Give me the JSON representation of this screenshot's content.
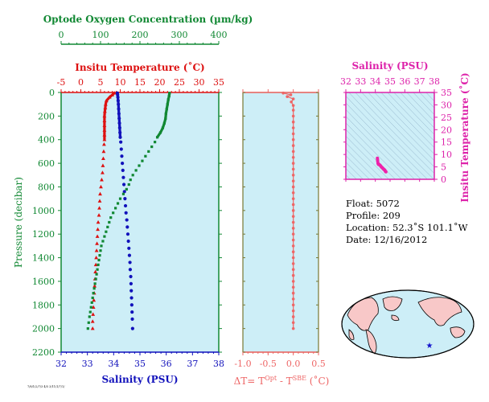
{
  "chart_data": [
    {
      "type": "scatter",
      "panel": "profiles",
      "ylabel": "Pressure (decibar)",
      "ylim": [
        0,
        2200
      ],
      "y_reversed": true,
      "yticks": [
        0,
        200,
        400,
        600,
        800,
        1000,
        1200,
        1400,
        1600,
        1800,
        2000,
        2200
      ],
      "axes": {
        "oxygen": {
          "label": "Optode Oxygen Concentration (µm/kg)",
          "lim": [
            0,
            400
          ],
          "ticks": [
            0,
            100,
            200,
            300,
            400
          ],
          "color": "#118833"
        },
        "temperature": {
          "label": "Insitu Temperature (˚C)",
          "lim": [
            -5,
            35
          ],
          "ticks": [
            -5,
            0,
            5,
            10,
            15,
            20,
            25,
            30,
            35
          ],
          "color": "#dd1111"
        },
        "salinity": {
          "label": "Salinity (PSU)",
          "lim": [
            32,
            38
          ],
          "ticks": [
            32,
            33,
            34,
            35,
            36,
            37,
            38
          ],
          "color": "#1111bb"
        }
      },
      "series": [
        {
          "name": "Insitu Temperature",
          "axis": "temperature",
          "color": "#dd1111",
          "marker": "triangle",
          "points": [
            [
              8.5,
              5
            ],
            [
              8.0,
              20
            ],
            [
              7.3,
              40
            ],
            [
              6.5,
              70
            ],
            [
              6.3,
              100
            ],
            [
              6.2,
              130
            ],
            [
              6.1,
              160
            ],
            [
              6.0,
              200
            ],
            [
              6.0,
              240
            ],
            [
              6.0,
              280
            ],
            [
              6.0,
              320
            ],
            [
              6.0,
              360
            ],
            [
              6.0,
              400
            ],
            [
              5.9,
              440
            ],
            [
              5.8,
              500
            ],
            [
              5.7,
              560
            ],
            [
              5.6,
              620
            ],
            [
              5.5,
              680
            ],
            [
              5.3,
              740
            ],
            [
              5.1,
              800
            ],
            [
              4.9,
              860
            ],
            [
              4.8,
              920
            ],
            [
              4.7,
              980
            ],
            [
              4.6,
              1040
            ],
            [
              4.4,
              1100
            ],
            [
              4.3,
              1160
            ],
            [
              4.2,
              1220
            ],
            [
              4.1,
              1280
            ],
            [
              4.0,
              1340
            ],
            [
              3.9,
              1400
            ],
            [
              3.8,
              1460
            ],
            [
              3.7,
              1520
            ],
            [
              3.6,
              1580
            ],
            [
              3.5,
              1640
            ],
            [
              3.4,
              1700
            ],
            [
              3.3,
              1760
            ],
            [
              3.2,
              1820
            ],
            [
              3.1,
              1880
            ],
            [
              3.0,
              1940
            ],
            [
              3.0,
              2000
            ]
          ]
        },
        {
          "name": "Salinity",
          "axis": "salinity",
          "color": "#1111bb",
          "marker": "circle",
          "points": [
            [
              34.14,
              5
            ],
            [
              34.15,
              20
            ],
            [
              34.16,
              40
            ],
            [
              34.17,
              70
            ],
            [
              34.18,
              100
            ],
            [
              34.19,
              140
            ],
            [
              34.2,
              180
            ],
            [
              34.21,
              220
            ],
            [
              34.22,
              260
            ],
            [
              34.23,
              300
            ],
            [
              34.24,
              340
            ],
            [
              34.25,
              380
            ],
            [
              34.27,
              420
            ],
            [
              34.29,
              480
            ],
            [
              34.31,
              540
            ],
            [
              34.33,
              600
            ],
            [
              34.35,
              660
            ],
            [
              34.37,
              720
            ],
            [
              34.39,
              780
            ],
            [
              34.41,
              840
            ],
            [
              34.43,
              900
            ],
            [
              34.45,
              960
            ],
            [
              34.47,
              1020
            ],
            [
              34.5,
              1080
            ],
            [
              34.52,
              1140
            ],
            [
              34.54,
              1200
            ],
            [
              34.56,
              1260
            ],
            [
              34.58,
              1320
            ],
            [
              34.6,
              1380
            ],
            [
              34.62,
              1440
            ],
            [
              34.63,
              1500
            ],
            [
              34.65,
              1560
            ],
            [
              34.66,
              1620
            ],
            [
              34.67,
              1680
            ],
            [
              34.68,
              1740
            ],
            [
              34.69,
              1800
            ],
            [
              34.7,
              1860
            ],
            [
              34.71,
              1920
            ],
            [
              34.72,
              2000
            ]
          ]
        },
        {
          "name": "Optode Oxygen",
          "axis": "oxygen",
          "color": "#118833",
          "marker": "square",
          "points": [
            [
              275,
              5
            ],
            [
              274,
              30
            ],
            [
              272,
              60
            ],
            [
              270,
              100
            ],
            [
              268,
              140
            ],
            [
              266,
              180
            ],
            [
              265,
              220
            ],
            [
              262,
              260
            ],
            [
              258,
              300
            ],
            [
              252,
              340
            ],
            [
              244,
              380
            ],
            [
              238,
              420
            ],
            [
              230,
              460
            ],
            [
              222,
              500
            ],
            [
              214,
              540
            ],
            [
              206,
              580
            ],
            [
              198,
              620
            ],
            [
              190,
              660
            ],
            [
              182,
              700
            ],
            [
              176,
              740
            ],
            [
              172,
              780
            ],
            [
              166,
              820
            ],
            [
              158,
              860
            ],
            [
              150,
              900
            ],
            [
              144,
              940
            ],
            [
              138,
              980
            ],
            [
              132,
              1020
            ],
            [
              126,
              1060
            ],
            [
              122,
              1100
            ],
            [
              118,
              1140
            ],
            [
              114,
              1180
            ],
            [
              110,
              1220
            ],
            [
              106,
              1260
            ],
            [
              102,
              1300
            ],
            [
              100,
              1340
            ],
            [
              98,
              1380
            ],
            [
              96,
              1420
            ],
            [
              94,
              1460
            ],
            [
              92,
              1500
            ],
            [
              90,
              1540
            ],
            [
              88,
              1580
            ],
            [
              86,
              1620
            ],
            [
              84,
              1660
            ],
            [
              82,
              1700
            ],
            [
              80,
              1740
            ],
            [
              78,
              1780
            ],
            [
              76,
              1820
            ],
            [
              74,
              1860
            ],
            [
              72,
              1900
            ],
            [
              70,
              1950
            ],
            [
              68,
              2000
            ]
          ]
        }
      ],
      "corner_label": "7/8/1/2/7/3 4/5 3/11/1/7/1/"
    },
    {
      "type": "scatter",
      "panel": "delta_t",
      "xlabel": "ΔT= T",
      "xlabel_sup1": "Opt",
      "xlabel_mid": " - T",
      "xlabel_sup2": "SBE",
      "xlabel_end": " (˚C)",
      "xlim": [
        -1.0,
        0.5
      ],
      "xticks": [
        "-1.0",
        "-0.5",
        "0.0",
        "0.5"
      ],
      "ylim": [
        0,
        2200
      ],
      "color": "#ee6666",
      "points": [
        [
          -0.2,
          5
        ],
        [
          -0.05,
          20
        ],
        [
          -0.12,
          35
        ],
        [
          0.0,
          55
        ],
        [
          -0.04,
          80
        ],
        [
          0.0,
          110
        ],
        [
          0.0,
          150
        ],
        [
          0.0,
          200
        ],
        [
          0.0,
          250
        ],
        [
          0.0,
          300
        ],
        [
          0.0,
          350
        ],
        [
          0.0,
          400
        ],
        [
          0.0,
          450
        ],
        [
          0.0,
          500
        ],
        [
          0.0,
          550
        ],
        [
          0.0,
          600
        ],
        [
          0.0,
          650
        ],
        [
          0.0,
          700
        ],
        [
          0.0,
          750
        ],
        [
          0.0,
          800
        ],
        [
          0.0,
          850
        ],
        [
          0.0,
          900
        ],
        [
          0.0,
          950
        ],
        [
          0.0,
          1000
        ],
        [
          0.0,
          1050
        ],
        [
          0.0,
          1100
        ],
        [
          0.0,
          1150
        ],
        [
          0.0,
          1200
        ],
        [
          0.0,
          1250
        ],
        [
          0.0,
          1300
        ],
        [
          0.0,
          1350
        ],
        [
          0.0,
          1400
        ],
        [
          0.0,
          1450
        ],
        [
          0.0,
          1500
        ],
        [
          0.0,
          1550
        ],
        [
          0.0,
          1600
        ],
        [
          0.0,
          1650
        ],
        [
          0.0,
          1700
        ],
        [
          0.0,
          1750
        ],
        [
          0.0,
          1800
        ],
        [
          0.0,
          1850
        ],
        [
          0.0,
          1900
        ],
        [
          0.0,
          1950
        ],
        [
          0.0,
          2000
        ]
      ]
    },
    {
      "type": "scatter",
      "panel": "ts_diagram",
      "xlabel": "Salinity (PSU)",
      "ylabel": "Insitu Temperature (˚C)",
      "xlim": [
        32,
        38
      ],
      "ylim": [
        0,
        35
      ],
      "xticks": [
        32,
        33,
        34,
        35,
        36,
        37,
        38
      ],
      "yticks": [
        0,
        5,
        10,
        15,
        20,
        25,
        30,
        35
      ],
      "color": "#ee22aa",
      "points": [
        [
          34.14,
          8.5
        ],
        [
          34.15,
          8.0
        ],
        [
          34.16,
          7.3
        ],
        [
          34.18,
          6.5
        ],
        [
          34.2,
          6.2
        ],
        [
          34.22,
          6.0
        ],
        [
          34.25,
          6.0
        ],
        [
          34.29,
          5.8
        ],
        [
          34.33,
          5.6
        ],
        [
          34.37,
          5.3
        ],
        [
          34.41,
          5.0
        ],
        [
          34.45,
          4.8
        ],
        [
          34.5,
          4.5
        ],
        [
          34.54,
          4.2
        ],
        [
          34.58,
          4.0
        ],
        [
          34.62,
          3.8
        ],
        [
          34.65,
          3.6
        ],
        [
          34.68,
          3.3
        ],
        [
          34.7,
          3.1
        ],
        [
          34.72,
          3.0
        ]
      ]
    }
  ],
  "info": {
    "float": "Float:  5072",
    "profile": "Profile:  209",
    "location": "Location:  52.3˚S  101.1˚W",
    "date": "Date:  12/16/2012"
  },
  "colors": {
    "panel_bg": "#cdeef7",
    "oxygen": "#118833",
    "temperature": "#dd1111",
    "salinity": "#1111bb",
    "ts": "#dd22aa",
    "delta": "#ee6666",
    "land": "#f8c8c8",
    "ocean": "#cdeef7"
  },
  "map": {
    "marker_icon": "star-icon"
  }
}
